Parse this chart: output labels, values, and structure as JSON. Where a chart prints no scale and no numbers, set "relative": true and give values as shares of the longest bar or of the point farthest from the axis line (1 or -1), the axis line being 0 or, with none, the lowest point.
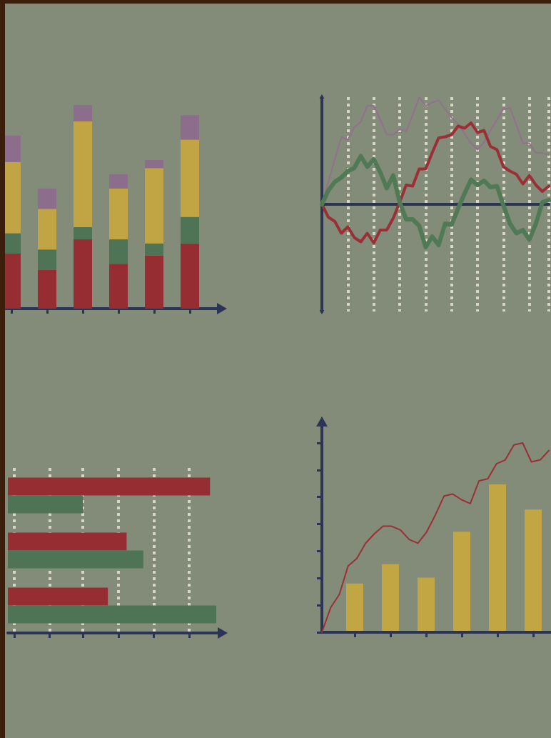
{
  "chart_data": [
    {
      "type": "bar",
      "stacked": true,
      "relative": true,
      "categories": [
        null,
        null,
        null,
        null,
        null,
        null
      ],
      "series": [
        {
          "color": "#962d33",
          "values": [
            0.27,
            0.19,
            0.34,
            0.22,
            0.26,
            0.32
          ]
        },
        {
          "color": "#4e7455",
          "values": [
            0.1,
            0.1,
            0.06,
            0.12,
            0.06,
            0.13
          ]
        },
        {
          "color": "#c1a544",
          "values": [
            0.35,
            0.2,
            0.52,
            0.25,
            0.37,
            0.38
          ]
        },
        {
          "color": "#8c6d8c",
          "values": [
            0.13,
            0.1,
            0.08,
            0.07,
            0.04,
            0.12
          ]
        }
      ]
    },
    {
      "type": "line",
      "relative": true,
      "categories": [
        null,
        null,
        null,
        null,
        null,
        null,
        null,
        null,
        null,
        null,
        null,
        null,
        null,
        null,
        null,
        null,
        null,
        null,
        null,
        null,
        null,
        null,
        null,
        null,
        null,
        null,
        null,
        null,
        null,
        null,
        null,
        null,
        null,
        null,
        null,
        null
      ],
      "grid": "x",
      "marker": "none",
      "line_style": "solid",
      "series": [
        {
          "color": "#93708f",
          "values": [
            0,
            0.21,
            0.42,
            0.63,
            0.6,
            0.72,
            0.77,
            0.92,
            0.92,
            0.79,
            0.65,
            0.65,
            0.7,
            0.68,
            0.83,
            1.0,
            0.92,
            0.95,
            0.97,
            0.89,
            0.81,
            0.75,
            0.66,
            0.57,
            0.51,
            0.58,
            0.69,
            0.79,
            0.89,
            0.9,
            0.74,
            0.57,
            0.57,
            0.48,
            0.48,
            0.46
          ]
        },
        {
          "color": "#9a2f35",
          "values": [
            0,
            -0.12,
            -0.16,
            -0.27,
            -0.21,
            -0.31,
            -0.35,
            -0.27,
            -0.36,
            -0.24,
            -0.24,
            -0.13,
            0.02,
            0.18,
            0.17,
            0.33,
            0.33,
            0.48,
            0.62,
            0.63,
            0.65,
            0.73,
            0.71,
            0.76,
            0.67,
            0.69,
            0.54,
            0.51,
            0.35,
            0.31,
            0.28,
            0.19,
            0.27,
            0.18,
            0.12,
            0.17
          ]
        },
        {
          "color": "#4f7a55",
          "values": [
            0,
            0.13,
            0.21,
            0.25,
            0.31,
            0.34,
            0.45,
            0.35,
            0.42,
            0.3,
            0.15,
            0.27,
            0.02,
            -0.14,
            -0.14,
            -0.2,
            -0.4,
            -0.3,
            -0.38,
            -0.18,
            -0.19,
            -0.04,
            0.1,
            0.23,
            0.18,
            0.22,
            0.16,
            0.17,
            -0.01,
            -0.18,
            -0.27,
            -0.24,
            -0.33,
            -0.18,
            0.02,
            0.04
          ]
        }
      ]
    },
    {
      "type": "bar",
      "orientation": "horizontal",
      "relative": true,
      "categories": [
        null,
        null,
        null
      ],
      "ref_lines": [
        {
          "axis": "x",
          "value": 0.03,
          "color": "#d9d6c6",
          "line_style": "dotted"
        },
        {
          "axis": "x",
          "value": 0.2,
          "color": "#d9d6c6",
          "line_style": "dotted"
        },
        {
          "axis": "x",
          "value": 0.36,
          "color": "#d9d6c6",
          "line_style": "dotted"
        },
        {
          "axis": "x",
          "value": 0.53,
          "color": "#d9d6c6",
          "line_style": "dotted"
        },
        {
          "axis": "x",
          "value": 0.7,
          "color": "#d9d6c6",
          "line_style": "dotted"
        },
        {
          "axis": "x",
          "value": 0.87,
          "color": "#d9d6c6",
          "line_style": "dotted"
        }
      ],
      "series": [
        {
          "color": "#962d33",
          "values": [
            0.97,
            0.57,
            0.48
          ]
        },
        {
          "color": "#4e7455",
          "values": [
            0.36,
            0.65,
            1.0
          ]
        }
      ]
    },
    {
      "type": "bar",
      "relative": true,
      "categories": [
        null,
        null,
        null,
        null,
        null,
        null
      ],
      "series": [
        {
          "color": "#c2a644",
          "values": [
            0.33,
            0.46,
            0.37,
            0.68,
            1.0,
            0.83
          ]
        }
      ]
    },
    {
      "type": "line",
      "relative": true,
      "categories": [
        null,
        null,
        null,
        null,
        null,
        null,
        null,
        null,
        null,
        null,
        null,
        null,
        null,
        null,
        null,
        null,
        null,
        null,
        null,
        null,
        null,
        null,
        null,
        null,
        null,
        null,
        null
      ],
      "marker": "none",
      "series": [
        {
          "color": "#9a2f35",
          "values": [
            0,
            0.13,
            0.2,
            0.35,
            0.39,
            0.47,
            0.52,
            0.56,
            0.56,
            0.54,
            0.49,
            0.47,
            0.53,
            0.62,
            0.72,
            0.73,
            0.7,
            0.68,
            0.8,
            0.81,
            0.89,
            0.91,
            0.99,
            1.0,
            0.9,
            0.91,
            0.96
          ]
        }
      ]
    }
  ]
}
